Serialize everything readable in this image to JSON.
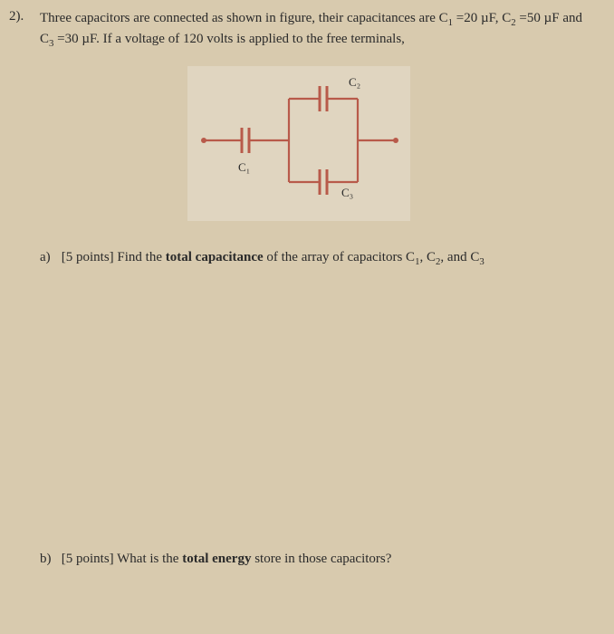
{
  "question": {
    "number": "2).",
    "text_html": "Three capacitors are connected as shown in figure, their capacitances are C<sub>1</sub> =20 µF, C<sub>2</sub> =50 µF and C<sub>3</sub> =30 µF. If a voltage of 120 volts is applied to the free terminals,"
  },
  "circuit": {
    "labels": {
      "c1": "C₁",
      "c2": "C₂",
      "c3": "C₃"
    },
    "colors": {
      "wire": "#b85a4a",
      "plate": "#b85a4a",
      "terminal": "#b85a4a",
      "bg": "#e0d5c0"
    },
    "stroke_width": 2.2
  },
  "parts": {
    "a": {
      "label": "a)",
      "body_html": "[5 points] Find the <b>total capacitance</b> of the array of capacitors C<sub>1</sub>, C<sub>2</sub>, and C<sub>3</sub>"
    },
    "b": {
      "label": "b)",
      "body_html": "[5 points] What is the <b>total energy</b> store in those capacitors?"
    }
  }
}
